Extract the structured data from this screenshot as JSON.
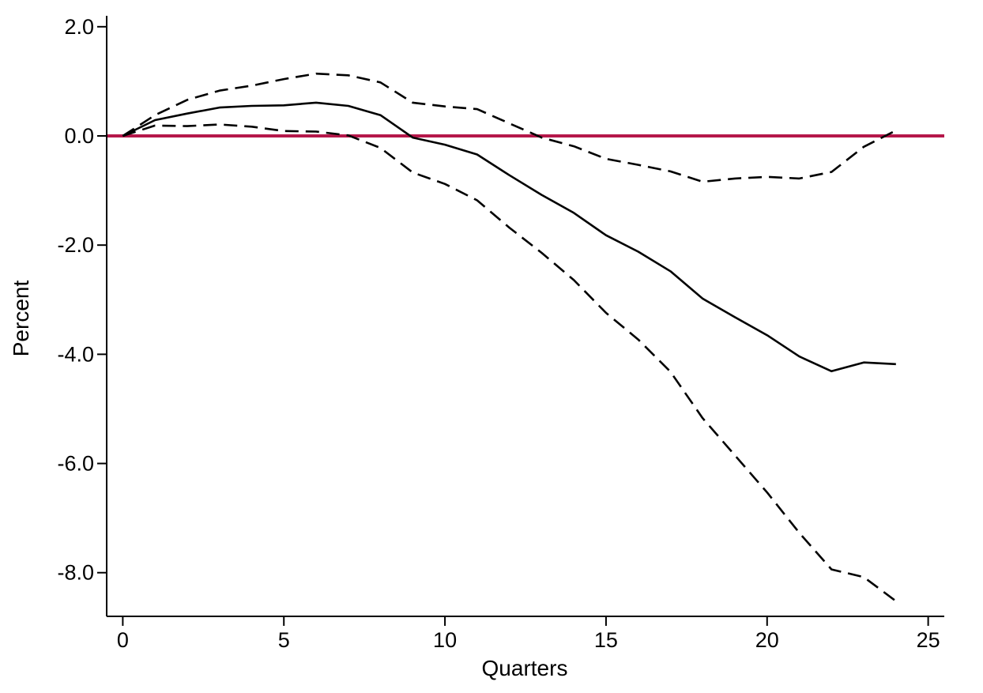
{
  "chart_data": {
    "type": "line",
    "title": "",
    "xlabel": "Quarters",
    "ylabel": "Percent",
    "xlim": [
      -0.5,
      25.5
    ],
    "ylim": [
      -8.8,
      2.2
    ],
    "xticks": [
      0,
      5,
      10,
      15,
      20,
      25
    ],
    "xtick_labels": [
      "0",
      "5",
      "10",
      "15",
      "20",
      "25"
    ],
    "yticks": [
      2,
      0,
      -2,
      -4,
      -6,
      -8
    ],
    "ytick_labels": [
      "2.0",
      "0.0",
      "-2.0",
      "-4.0",
      "-6.0",
      "-8.0"
    ],
    "grid": false,
    "legend": "none",
    "reference_line": {
      "y": 0,
      "color": "#b5174a"
    },
    "x": [
      0,
      1,
      2,
      3,
      4,
      5,
      6,
      7,
      8,
      9,
      10,
      11,
      12,
      13,
      14,
      15,
      16,
      17,
      18,
      19,
      20,
      21,
      22,
      23,
      24
    ],
    "series": [
      {
        "style": "solid",
        "color": "#000000",
        "values": [
          0,
          0.29,
          0.41,
          0.52,
          0.55,
          0.56,
          0.61,
          0.55,
          0.38,
          -0.03,
          -0.16,
          -0.34,
          -0.72,
          -1.08,
          -1.41,
          -1.82,
          -2.12,
          -2.48,
          -2.98,
          -3.32,
          -3.65,
          -4.04,
          -4.31,
          -4.15,
          -4.18
        ]
      },
      {
        "style": "dashed",
        "color": "#000000",
        "values": [
          0,
          0.38,
          0.66,
          0.83,
          0.92,
          1.04,
          1.14,
          1.11,
          0.98,
          0.61,
          0.54,
          0.49,
          0.23,
          -0.03,
          -0.19,
          -0.42,
          -0.53,
          -0.65,
          -0.84,
          -0.78,
          -0.75,
          -0.78,
          -0.66,
          -0.2,
          0.1
        ]
      },
      {
        "style": "dashed",
        "color": "#000000",
        "values": [
          0,
          0.19,
          0.18,
          0.21,
          0.17,
          0.09,
          0.08,
          0.01,
          -0.22,
          -0.67,
          -0.88,
          -1.18,
          -1.68,
          -2.14,
          -2.64,
          -3.24,
          -3.73,
          -4.32,
          -5.17,
          -5.85,
          -6.53,
          -7.27,
          -7.94,
          -8.08,
          -8.52
        ]
      }
    ]
  }
}
